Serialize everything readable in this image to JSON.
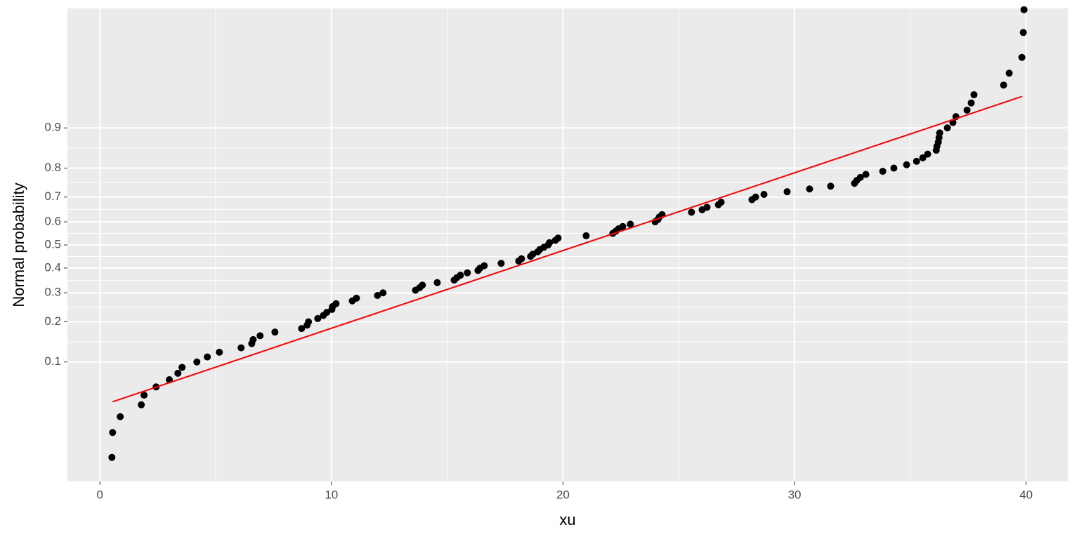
{
  "chart_data": {
    "type": "scatter",
    "yscale": "probit",
    "grid": true,
    "x_label": "xu",
    "y_label": "Normal probability",
    "color": "#000000",
    "x": [
      0.52,
      0.55,
      0.88,
      1.79,
      1.91,
      2.43,
      3.0,
      3.37,
      3.55,
      4.19,
      4.64,
      5.16,
      6.1,
      6.56,
      6.62,
      6.92,
      7.56,
      8.71,
      8.95,
      9.01,
      9.41,
      9.65,
      9.8,
      10.02,
      10.05,
      10.2,
      10.9,
      11.08,
      11.99,
      12.23,
      13.63,
      13.81,
      13.93,
      14.57,
      15.3,
      15.42,
      15.57,
      15.87,
      16.33,
      16.42,
      16.6,
      17.33,
      18.09,
      18.21,
      18.6,
      18.7,
      18.91,
      19.0,
      19.18,
      19.36,
      19.42,
      19.67,
      19.79,
      21.0,
      22.15,
      22.28,
      22.4,
      22.58,
      22.91,
      23.98,
      24.1,
      24.16,
      24.28,
      25.55,
      26.01,
      26.22,
      26.71,
      26.83,
      28.16,
      28.32,
      28.68,
      29.68,
      30.65,
      31.56,
      32.59,
      32.69,
      32.84,
      33.08,
      33.81,
      34.29,
      34.84,
      35.27,
      35.54,
      35.75,
      36.12,
      36.15,
      36.21,
      36.24,
      36.27,
      36.6,
      36.84,
      36.97,
      37.45,
      37.63,
      37.75,
      39.03,
      39.27,
      39.82,
      39.88,
      39.91
    ],
    "y": [
      0.01,
      0.02,
      0.03,
      0.04,
      0.05,
      0.06,
      0.07,
      0.08,
      0.09,
      0.1,
      0.11,
      0.12,
      0.13,
      0.14,
      0.15,
      0.16,
      0.17,
      0.18,
      0.19,
      0.2,
      0.21,
      0.22,
      0.23,
      0.24,
      0.25,
      0.26,
      0.27,
      0.28,
      0.29,
      0.3,
      0.31,
      0.32,
      0.33,
      0.34,
      0.35,
      0.36,
      0.37,
      0.38,
      0.39,
      0.4,
      0.41,
      0.42,
      0.43,
      0.44,
      0.45,
      0.46,
      0.47,
      0.48,
      0.49,
      0.5,
      0.51,
      0.52,
      0.53,
      0.54,
      0.55,
      0.56,
      0.57,
      0.58,
      0.59,
      0.6,
      0.61,
      0.62,
      0.63,
      0.64,
      0.65,
      0.66,
      0.67,
      0.68,
      0.69,
      0.7,
      0.71,
      0.72,
      0.73,
      0.74,
      0.75,
      0.76,
      0.77,
      0.78,
      0.79,
      0.8,
      0.81,
      0.82,
      0.83,
      0.84,
      0.85,
      0.86,
      0.87,
      0.88,
      0.89,
      0.9,
      0.91,
      0.92,
      0.93,
      0.94,
      0.95,
      0.96,
      0.97,
      0.98,
      0.99,
      0.995
    ],
    "fit_line": {
      "x": [
        0.55,
        39.82
      ],
      "y": [
        0.043,
        0.948
      ],
      "color": "#ff0000"
    },
    "xlim": [
      -1.4,
      41.8
    ],
    "xticks": [
      0,
      10,
      20,
      30,
      40
    ],
    "ylim": [
      0.0048,
      0.9952
    ],
    "yticks": [
      0.1,
      0.2,
      0.3,
      0.4,
      0.5,
      0.6,
      0.7,
      0.8,
      0.9
    ]
  }
}
